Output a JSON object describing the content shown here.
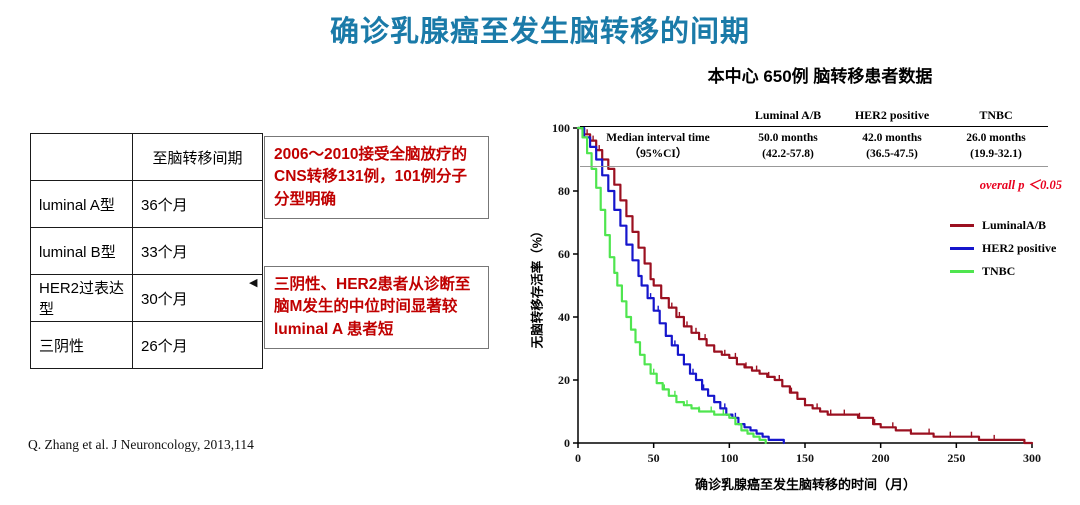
{
  "slide": {
    "title": "确诊乳腺癌至发生脑转移的间期",
    "citation": "Q. Zhang et al. J Neuroncology, 2013,114"
  },
  "interval_table": {
    "header": {
      "label": "",
      "value": "至脑转移间期"
    },
    "rows": [
      {
        "label": "luminal A型",
        "value": "36个月"
      },
      {
        "label": "luminal B型",
        "value": "33个月"
      },
      {
        "label": "HER2过表达型",
        "value": "30个月"
      },
      {
        "label": "三阴性",
        "value": "26个月"
      }
    ]
  },
  "notes": {
    "note1": "2006～2010接受全脑放疗的CNS转移131例，101例分子分型明确",
    "note2": "三阴性、HER2患者从诊断至脑M发生的中位时间显著较luminal A 患者短",
    "pointer_icon": "◀"
  },
  "chart": {
    "title": "本中心 650例 脑转移患者数据",
    "stats": {
      "row_label_line1": "Median interval time",
      "row_label_line2": "（95%CI）",
      "columns": [
        {
          "name": "Luminal A/B",
          "value": "50.0 months",
          "ci": "(42.2-57.8)"
        },
        {
          "name": "HER2 positive",
          "value": "42.0 months",
          "ci": "(36.5-47.5)"
        },
        {
          "name": "TNBC",
          "value": "26.0 months",
          "ci": "(19.9-32.1)"
        }
      ]
    },
    "p_value": "overall p ＜0.05",
    "legend": [
      {
        "label": "LuminalA/B",
        "color": "#9b1020"
      },
      {
        "label": "HER2 positive",
        "color": "#1616cc"
      },
      {
        "label": "TNBC",
        "color": "#4fe54f"
      }
    ],
    "xlabel": "确诊乳腺癌至发生脑转移的时间（月）",
    "ylabel": "无脑转移存活率（%）"
  },
  "chart_data": {
    "type": "line",
    "subtype": "kaplan-meier-step",
    "title": "本中心 650例 脑转移患者数据",
    "xlabel": "确诊乳腺癌至发生脑转移的时间（月）",
    "ylabel": "无脑转移存活率（%）",
    "xlim": [
      0,
      300
    ],
    "ylim": [
      0,
      100
    ],
    "xticks": [
      0,
      50,
      100,
      150,
      200,
      250,
      300
    ],
    "yticks": [
      0,
      20,
      40,
      60,
      80,
      100
    ],
    "annotation": "overall p ＜0.05",
    "legend_position": "right",
    "grid": false,
    "series": [
      {
        "name": "LuminalA/B",
        "color": "#9b1020",
        "median_months": 50.0,
        "ci_95": "42.2-57.8",
        "points": [
          [
            0,
            100
          ],
          [
            4,
            98
          ],
          [
            8,
            96
          ],
          [
            12,
            93
          ],
          [
            16,
            90
          ],
          [
            20,
            87
          ],
          [
            24,
            82
          ],
          [
            28,
            77
          ],
          [
            32,
            72
          ],
          [
            36,
            67
          ],
          [
            40,
            62
          ],
          [
            44,
            57
          ],
          [
            48,
            52
          ],
          [
            50,
            50
          ],
          [
            55,
            46
          ],
          [
            60,
            43
          ],
          [
            65,
            40
          ],
          [
            70,
            37
          ],
          [
            75,
            35
          ],
          [
            80,
            33
          ],
          [
            85,
            31
          ],
          [
            90,
            29
          ],
          [
            95,
            28
          ],
          [
            100,
            27
          ],
          [
            105,
            25
          ],
          [
            110,
            24
          ],
          [
            115,
            23
          ],
          [
            120,
            22
          ],
          [
            125,
            21
          ],
          [
            130,
            20
          ],
          [
            135,
            18
          ],
          [
            140,
            16
          ],
          [
            145,
            14
          ],
          [
            150,
            12
          ],
          [
            155,
            11
          ],
          [
            160,
            10
          ],
          [
            165,
            9
          ],
          [
            175,
            9
          ],
          [
            185,
            8
          ],
          [
            195,
            6
          ],
          [
            200,
            5
          ],
          [
            210,
            4
          ],
          [
            220,
            3
          ],
          [
            235,
            2
          ],
          [
            250,
            2
          ],
          [
            265,
            1
          ],
          [
            280,
            1
          ],
          [
            295,
            0
          ],
          [
            300,
            0
          ]
        ],
        "censor_x": [
          6,
          10,
          14,
          62,
          67,
          72,
          78,
          84,
          90,
          97,
          104,
          111,
          118,
          126,
          133,
          141,
          150,
          158,
          167,
          176,
          186,
          196,
          208,
          220,
          232,
          246,
          260,
          275
        ]
      },
      {
        "name": "HER2 positive",
        "color": "#1616cc",
        "median_months": 42.0,
        "ci_95": "36.5-47.5",
        "points": [
          [
            0,
            100
          ],
          [
            4,
            97
          ],
          [
            8,
            94
          ],
          [
            12,
            90
          ],
          [
            16,
            85
          ],
          [
            20,
            80
          ],
          [
            24,
            74
          ],
          [
            28,
            69
          ],
          [
            32,
            63
          ],
          [
            36,
            58
          ],
          [
            40,
            53
          ],
          [
            42,
            50
          ],
          [
            46,
            46
          ],
          [
            50,
            42
          ],
          [
            54,
            38
          ],
          [
            58,
            34
          ],
          [
            62,
            31
          ],
          [
            66,
            28
          ],
          [
            70,
            25
          ],
          [
            74,
            22
          ],
          [
            78,
            20
          ],
          [
            82,
            17
          ],
          [
            86,
            15
          ],
          [
            90,
            13
          ],
          [
            94,
            11
          ],
          [
            98,
            9
          ],
          [
            102,
            8
          ],
          [
            106,
            6
          ],
          [
            110,
            5
          ],
          [
            114,
            4
          ],
          [
            118,
            3
          ],
          [
            122,
            2
          ],
          [
            126,
            1
          ],
          [
            132,
            1
          ],
          [
            136,
            0
          ]
        ],
        "censor_x": [
          48,
          53,
          58,
          64,
          70,
          76,
          83,
          90,
          97,
          104
        ]
      },
      {
        "name": "TNBC",
        "color": "#4fe54f",
        "median_months": 26.0,
        "ci_95": "19.9-32.1",
        "points": [
          [
            0,
            100
          ],
          [
            3,
            97
          ],
          [
            6,
            92
          ],
          [
            9,
            87
          ],
          [
            12,
            81
          ],
          [
            15,
            74
          ],
          [
            18,
            66
          ],
          [
            21,
            59
          ],
          [
            24,
            54
          ],
          [
            26,
            50
          ],
          [
            29,
            45
          ],
          [
            32,
            40
          ],
          [
            35,
            36
          ],
          [
            38,
            32
          ],
          [
            41,
            28
          ],
          [
            44,
            25
          ],
          [
            48,
            22
          ],
          [
            52,
            19
          ],
          [
            56,
            17
          ],
          [
            60,
            15
          ],
          [
            65,
            13
          ],
          [
            70,
            12
          ],
          [
            75,
            11
          ],
          [
            80,
            10
          ],
          [
            85,
            10
          ],
          [
            90,
            9
          ],
          [
            95,
            9
          ],
          [
            100,
            8
          ],
          [
            104,
            6
          ],
          [
            108,
            4
          ],
          [
            112,
            3
          ],
          [
            116,
            2
          ],
          [
            120,
            1
          ],
          [
            124,
            0
          ]
        ],
        "censor_x": [
          38,
          44,
          50,
          57,
          64,
          72,
          80,
          88,
          96,
          104
        ]
      }
    ]
  }
}
